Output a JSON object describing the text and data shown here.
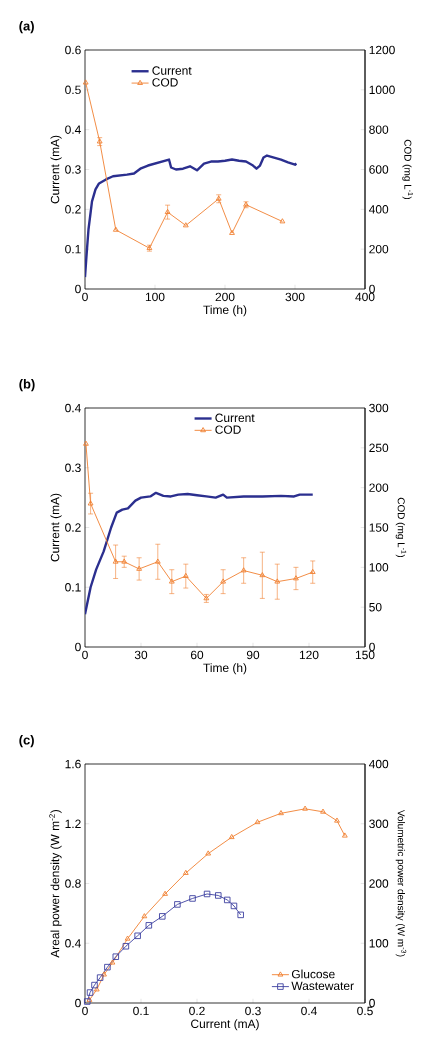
{
  "chart_data": [
    {
      "type": "line",
      "title": "(a)",
      "xlabel": "Time (h)",
      "ylabel": "Current (mA)",
      "y2label": "COD (mg L$^{-1}$)",
      "xlim": [
        0,
        400
      ],
      "xticks": [
        0,
        100,
        200,
        300,
        400
      ],
      "ylim": [
        0,
        0.6
      ],
      "yticks": [
        0,
        0.1,
        0.2,
        0.3,
        0.4,
        0.5,
        0.6
      ],
      "y2lim": [
        0,
        1200
      ],
      "y2ticks": [
        0,
        200,
        400,
        600,
        800,
        1000,
        1200
      ],
      "legend": "top left",
      "series": [
        {
          "name": "Current",
          "color": "#2b2f8f",
          "marker": "none",
          "x": [
            0,
            2,
            5,
            10,
            15,
            20,
            30,
            40,
            50,
            60,
            70,
            80,
            90,
            100,
            110,
            120,
            123,
            130,
            140,
            150,
            160,
            170,
            180,
            190,
            200,
            210,
            220,
            230,
            240,
            245,
            250,
            255,
            260,
            270,
            280,
            290,
            300,
            302
          ],
          "values": [
            0.03,
            0.08,
            0.15,
            0.22,
            0.25,
            0.265,
            0.275,
            0.283,
            0.285,
            0.287,
            0.29,
            0.303,
            0.31,
            0.315,
            0.32,
            0.325,
            0.305,
            0.3,
            0.302,
            0.308,
            0.298,
            0.315,
            0.32,
            0.32,
            0.322,
            0.325,
            0.322,
            0.32,
            0.31,
            0.302,
            0.31,
            0.33,
            0.335,
            0.33,
            0.325,
            0.318,
            0.312,
            0.315
          ]
        },
        {
          "name": "COD",
          "color": "#f08030",
          "marker": "triangle",
          "axis": "y2",
          "x": [
            1,
            21,
            44,
            92,
            118,
            144,
            191,
            210,
            230,
            282
          ],
          "values": [
            1036,
            740,
            297,
            205,
            386,
            319,
            453,
            281,
            423,
            339
          ],
          "errors": [
            null,
            20,
            null,
            15,
            35,
            null,
            20,
            null,
            15,
            null
          ]
        }
      ]
    },
    {
      "type": "line",
      "title": "(b)",
      "xlabel": "Time (h)",
      "ylabel": "Current (mA)",
      "y2label": "COD (mg L$^{-1}$)",
      "xlim": [
        0,
        150
      ],
      "xticks": [
        0,
        30,
        60,
        90,
        120,
        150
      ],
      "ylim": [
        0,
        0.4
      ],
      "yticks": [
        0,
        0.1,
        0.2,
        0.3,
        0.4
      ],
      "y2lim": [
        0,
        300
      ],
      "y2ticks": [
        0,
        50,
        100,
        150,
        200,
        250,
        300
      ],
      "legend": "top",
      "series": [
        {
          "name": "Current",
          "color": "#2b2f8f",
          "marker": "none",
          "x": [
            0,
            3,
            6,
            10,
            14,
            17,
            20,
            23,
            27,
            30,
            35,
            38,
            42,
            46,
            50,
            55,
            60,
            65,
            70,
            74,
            76,
            85,
            95,
            105,
            112,
            115,
            122
          ],
          "values": [
            0.055,
            0.1,
            0.13,
            0.16,
            0.2,
            0.225,
            0.23,
            0.232,
            0.245,
            0.25,
            0.252,
            0.258,
            0.253,
            0.252,
            0.255,
            0.256,
            0.254,
            0.252,
            0.25,
            0.255,
            0.25,
            0.252,
            0.252,
            0.253,
            0.252,
            0.255,
            0.255
          ]
        },
        {
          "name": "COD",
          "color": "#f08030",
          "marker": "triangle",
          "axis": "y2",
          "x": [
            0.5,
            3,
            16.4,
            21,
            29,
            39,
            46.5,
            54,
            65,
            74,
            85,
            95,
            103,
            113,
            122
          ],
          "values": [
            255,
            180,
            107,
            107,
            98,
            107,
            82,
            89,
            61,
            82,
            96,
            90,
            82,
            86,
            94
          ],
          "errors": [
            null,
            13,
            21,
            7,
            14,
            22,
            15,
            15,
            5,
            15,
            16,
            29,
            22,
            14,
            14
          ]
        }
      ]
    },
    {
      "type": "line",
      "title": "(c)",
      "xlabel": "Current (mA)",
      "ylabel": "Areal power density (W m$^{-2}$)",
      "y2label": "Volumetric power density (W m$^{-3}$)",
      "xlim": [
        0,
        0.5
      ],
      "xticks": [
        0,
        0.1,
        0.2,
        0.3,
        0.4,
        0.5
      ],
      "ylim": [
        0,
        1.6
      ],
      "yticks": [
        0,
        0.4,
        0.8,
        1.2,
        1.6
      ],
      "y2lim": [
        0,
        400
      ],
      "y2ticks": [
        0,
        100,
        200,
        300,
        400
      ],
      "legend": "bottom right",
      "series": [
        {
          "name": "Glucose",
          "color": "#f08030",
          "marker": "triangle",
          "x": [
            0.008,
            0.021,
            0.034,
            0.049,
            0.076,
            0.106,
            0.143,
            0.18,
            0.22,
            0.262,
            0.308,
            0.35,
            0.393,
            0.425,
            0.45,
            0.464
          ],
          "values": [
            0.02,
            0.09,
            0.19,
            0.27,
            0.43,
            0.58,
            0.73,
            0.87,
            1.0,
            1.11,
            1.21,
            1.27,
            1.3,
            1.28,
            1.22,
            1.12
          ]
        },
        {
          "name": "Wastewater",
          "color": "#3c40a0",
          "marker": "square",
          "x": [
            0.004,
            0.009,
            0.017,
            0.027,
            0.04,
            0.055,
            0.073,
            0.094,
            0.114,
            0.138,
            0.165,
            0.192,
            0.218,
            0.238,
            0.254,
            0.266,
            0.278
          ],
          "values": [
            0.01,
            0.07,
            0.12,
            0.17,
            0.24,
            0.31,
            0.38,
            0.45,
            0.52,
            0.58,
            0.66,
            0.7,
            0.73,
            0.72,
            0.69,
            0.65,
            0.59
          ]
        }
      ]
    }
  ]
}
